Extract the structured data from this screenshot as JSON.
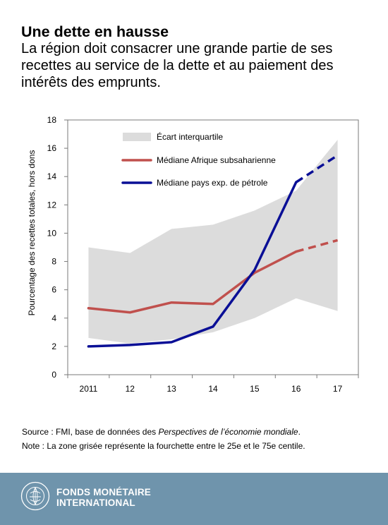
{
  "header": {
    "title": "Une dette en hausse",
    "subtitle": "La région doit consacrer une grande partie de ses recettes au service de la dette et au paiement des intérêts des emprunts."
  },
  "chart_data": {
    "type": "line",
    "categories": [
      "2011",
      "12",
      "13",
      "14",
      "15",
      "16",
      "17"
    ],
    "ylabel": "Pourcentage des recettes totales, hors dons",
    "xlabel": "",
    "ylim": [
      0,
      18
    ],
    "yticks": [
      0,
      2,
      4,
      6,
      8,
      10,
      12,
      14,
      16,
      18
    ],
    "band": {
      "name": "Écart interquartile",
      "color": "#dcdcdc",
      "lower": [
        2.6,
        2.2,
        2.5,
        3.0,
        4.0,
        5.4,
        4.5
      ],
      "upper": [
        9.0,
        8.6,
        10.3,
        10.6,
        11.6,
        13.0,
        16.6
      ]
    },
    "series": [
      {
        "name": "Médiane Afrique subsaharienne",
        "color": "#c0504d",
        "values": [
          4.7,
          4.4,
          5.1,
          5.0,
          7.2,
          8.7,
          9.5
        ],
        "projection_from_index": 5
      },
      {
        "name": "Médiane pays exp. de pétrole",
        "color": "#0a0f96",
        "values": [
          2.0,
          2.1,
          2.3,
          3.4,
          7.4,
          13.6,
          15.5
        ],
        "projection_from_index": 5
      }
    ],
    "legend_position": "top-left",
    "grid": false
  },
  "notes": {
    "source_prefix": "Source : FMI, base de données des ",
    "source_italic": "Perspectives de l’économie mondiale",
    "source_suffix": ".",
    "note": "Note : La zone grisée représente la fourchette entre le 25e et le 75e centile."
  },
  "footer": {
    "org_line1": "FONDS MONÉTAIRE",
    "org_line2": "INTERNATIONAL",
    "seal_text": "INTERNATIONAL MONETARY FUND",
    "colors": {
      "background": "#6f94ac",
      "text": "#ffffff"
    }
  }
}
